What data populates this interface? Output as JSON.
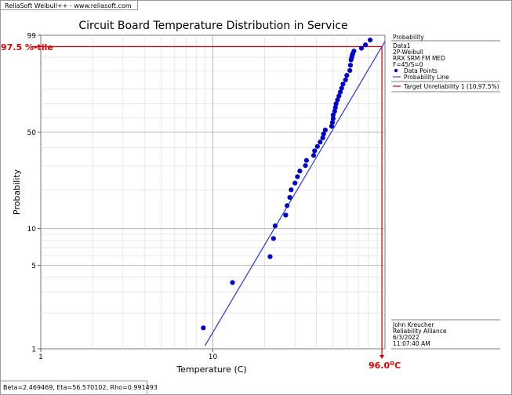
{
  "header": {
    "text": "ReliaSoft Weibull++ - www.reliasoft.com"
  },
  "footer": {
    "text": "Beta=2.469469, Eta=56.570102, Rho=0.991493"
  },
  "annotations": {
    "percentile_label": "97.5 %-tile",
    "temperature_label": "96.0",
    "temperature_sup": "O",
    "temperature_unit": "C"
  },
  "legend": {
    "title": "Probability",
    "lines": [
      "Data1",
      "2P-Weibull",
      "RRX SRM FM MED",
      "F=45/S=0"
    ],
    "items": [
      {
        "label": "Data Points",
        "kind": "marker",
        "color": "#0000cc"
      },
      {
        "label": "Probability Line",
        "kind": "line",
        "color": "#3344dd"
      },
      {
        "label": "Target Unreliability 1 (10,97.5%)",
        "kind": "line",
        "color": "#dd0000"
      }
    ],
    "footer_lines": [
      "John Kreucher",
      "Reliability Alliance",
      "6/3/2022",
      "11:07:40 AM"
    ]
  },
  "colors": {
    "points": "#0000cc",
    "fit_line": "#3344dd",
    "target": "#dd0000",
    "major_grid": "#b8b8b8",
    "minor_grid": "#e2e2e2",
    "text": "#000000"
  },
  "chart_data": {
    "type": "scatter",
    "title": "Circuit Board Temperature Distribution in Service",
    "xlabel": "Temperature (C)",
    "ylabel": "Probability",
    "x_scale": "log",
    "y_scale": "weibull",
    "xlim": [
      1,
      100
    ],
    "ylim": [
      1,
      99
    ],
    "x_ticks": [
      1,
      10
    ],
    "y_ticks": [
      1,
      5,
      10,
      50,
      99
    ],
    "grid": true,
    "legend_position": "right",
    "series": [
      {
        "name": "Data Points",
        "x": [
          8.8,
          13.0,
          21.5,
          22.5,
          23.0,
          26.5,
          27.0,
          28.0,
          28.5,
          30.0,
          31.0,
          32.0,
          34.5,
          35.0,
          38.5,
          39.0,
          40.5,
          42.0,
          43.5,
          44.0,
          45.0,
          49.0,
          49.5,
          50.0,
          50.0,
          51.0,
          51.5,
          52.0,
          53.0,
          54.0,
          55.0,
          56.0,
          57.0,
          59.0,
          60.0,
          62.5,
          63.0,
          63.5,
          64.0,
          64.5,
          65.0,
          66.0,
          73.0,
          77.0,
          82.0
        ],
        "y": [
          1.5,
          3.6,
          5.9,
          8.3,
          10.5,
          12.8,
          15.2,
          17.6,
          20.1,
          22.6,
          25.2,
          27.7,
          30.3,
          32.9,
          35.6,
          38.2,
          40.8,
          43.5,
          46.2,
          48.8,
          51.5,
          54.1,
          56.8,
          59.5,
          62.1,
          64.8,
          67.5,
          70.1,
          72.8,
          75.4,
          78.0,
          80.5,
          83.0,
          85.4,
          87.8,
          90.1,
          92.3,
          94.2,
          94.8,
          95.5,
          96.0,
          96.6,
          97.2,
          97.8,
          98.5
        ]
      }
    ],
    "fit": {
      "name": "Probability Line",
      "distribution": "2P-Weibull",
      "beta": 2.469469,
      "eta": 56.570102,
      "rho": 0.991493,
      "x_range": [
        9.0,
        100
      ]
    },
    "target": {
      "name": "Target Unreliability 1",
      "probability": 97.5,
      "x_value": 96.0
    }
  }
}
